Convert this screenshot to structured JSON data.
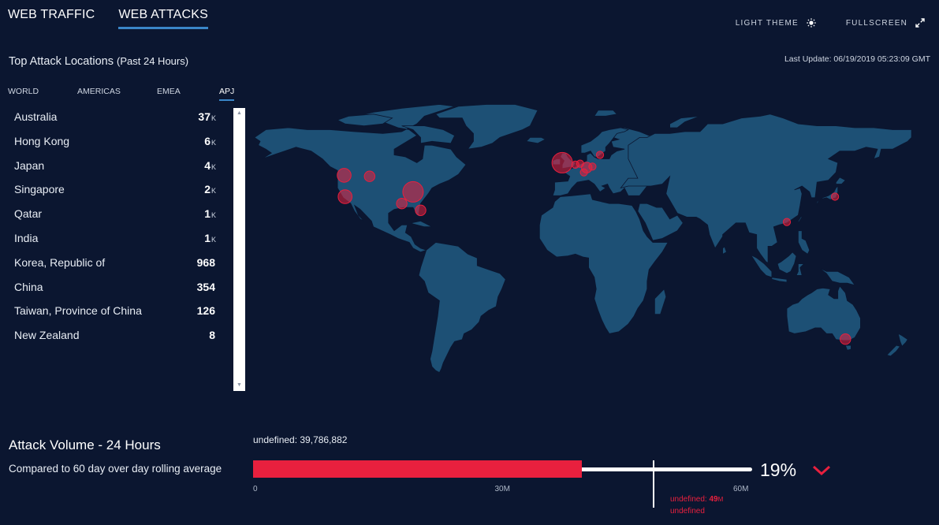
{
  "nav": {
    "tabs": [
      {
        "label": "WEB TRAFFIC",
        "active": false
      },
      {
        "label": "WEB ATTACKS",
        "active": true
      }
    ],
    "light_theme_label": "LIGHT THEME",
    "fullscreen_label": "FULLSCREEN"
  },
  "header": {
    "title": "Top Attack Locations",
    "subtitle": "(Past 24 Hours)",
    "last_update": "Last Update: 06/19/2019 05:23:09 GMT"
  },
  "regions": [
    {
      "label": "WORLD",
      "active": false
    },
    {
      "label": "AMERICAS",
      "active": false
    },
    {
      "label": "EMEA",
      "active": false
    },
    {
      "label": "APJ",
      "active": true
    }
  ],
  "locations": [
    {
      "name": "Australia",
      "value": "37",
      "unit": "K"
    },
    {
      "name": "Hong Kong",
      "value": "6",
      "unit": "K"
    },
    {
      "name": "Japan",
      "value": "4",
      "unit": "K"
    },
    {
      "name": "Singapore",
      "value": "2",
      "unit": "K"
    },
    {
      "name": "Qatar",
      "value": "1",
      "unit": "K"
    },
    {
      "name": "India",
      "value": "1",
      "unit": "K"
    },
    {
      "name": "Korea, Republic of",
      "value": "968",
      "unit": ""
    },
    {
      "name": "China",
      "value": "354",
      "unit": ""
    },
    {
      "name": "Taiwan, Province of China",
      "value": "126",
      "unit": ""
    },
    {
      "name": "New Zealand",
      "value": "8",
      "unit": ""
    }
  ],
  "volume": {
    "title": "Attack Volume - 24 Hours",
    "subtitle": "Compared to 60 day over day rolling average",
    "current_label": "undefined: 39,786,882",
    "current_value": 39786882,
    "average_value": 49000000,
    "axis_max": 60000000,
    "ticks": [
      "0",
      "30M",
      "60M"
    ],
    "percent": "19%",
    "avg_prefix": "undefined: ",
    "avg_value": "49",
    "avg_unit": "M",
    "avg_line2": "undefined"
  },
  "colors": {
    "background": "#0b1630",
    "land": "#1d5075",
    "attack": "#e8203e",
    "accent": "#3a86c8"
  },
  "icons": {
    "light_theme": "sun-icon",
    "fullscreen": "expand-icon",
    "trend": "chevron-down-icon"
  },
  "attack_markers": [
    {
      "lon": -120.5,
      "lat": 46.5,
      "size": 3
    },
    {
      "lon": -107,
      "lat": 46,
      "size": 2
    },
    {
      "lon": -120,
      "lat": 35.5,
      "size": 3
    },
    {
      "lon": -84,
      "lat": 38,
      "size": 5
    },
    {
      "lon": -90,
      "lat": 32,
      "size": 2
    },
    {
      "lon": -80,
      "lat": 28.5,
      "size": 2
    },
    {
      "lon": -5,
      "lat": 53,
      "size": 5
    },
    {
      "lon": 2,
      "lat": 52,
      "size": 1
    },
    {
      "lon": 4.5,
      "lat": 52.5,
      "size": 1
    },
    {
      "lon": 8,
      "lat": 50.5,
      "size": 2
    },
    {
      "lon": 11,
      "lat": 51,
      "size": 1
    },
    {
      "lon": 6.5,
      "lat": 48,
      "size": 1
    },
    {
      "lon": 15,
      "lat": 57,
      "size": 1
    },
    {
      "lon": 114,
      "lat": 22.5,
      "size": 1
    },
    {
      "lon": 139.5,
      "lat": 35.5,
      "size": 1
    },
    {
      "lon": 145,
      "lat": -37.8,
      "size": 2
    }
  ]
}
